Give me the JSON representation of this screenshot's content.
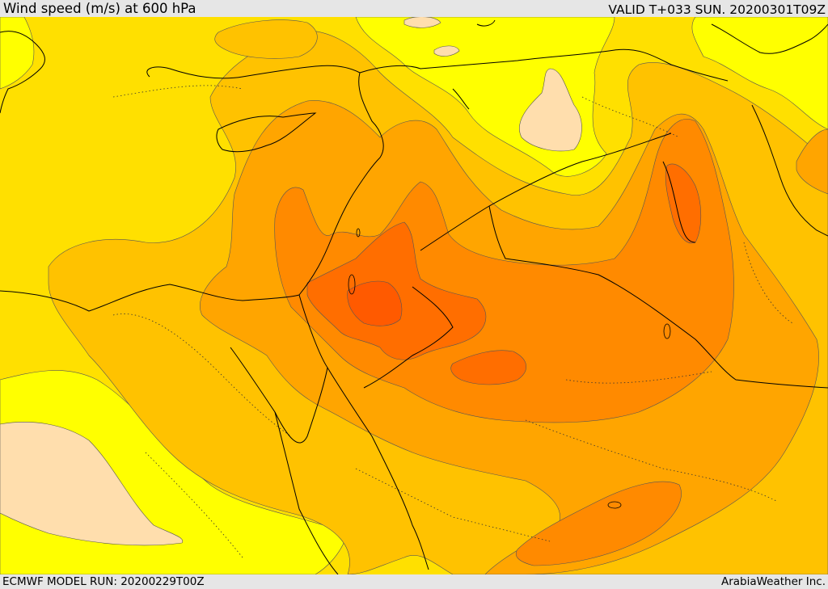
{
  "header": {
    "title": "Wind speed (m/s) at 600 hPa",
    "valid_time": "VALID T+033 SUN. 20200301T09Z"
  },
  "footer": {
    "model_run": "ECMWF MODEL RUN: 20200229T00Z",
    "credit": "ArabiaWeather Inc."
  },
  "map": {
    "region": "Eastern Mediterranean and Middle East",
    "variable": "wind speed",
    "level": "600 hPa",
    "colors": {
      "band_low": "#ffff00",
      "band_1": "#ffe000",
      "band_2": "#ffc200",
      "band_3": "#ffa500",
      "band_4": "#ff8a00",
      "band_5": "#ff6e00",
      "band_6": "#ff5a00",
      "calm": "#ffdead",
      "coastline": "#000000"
    }
  }
}
